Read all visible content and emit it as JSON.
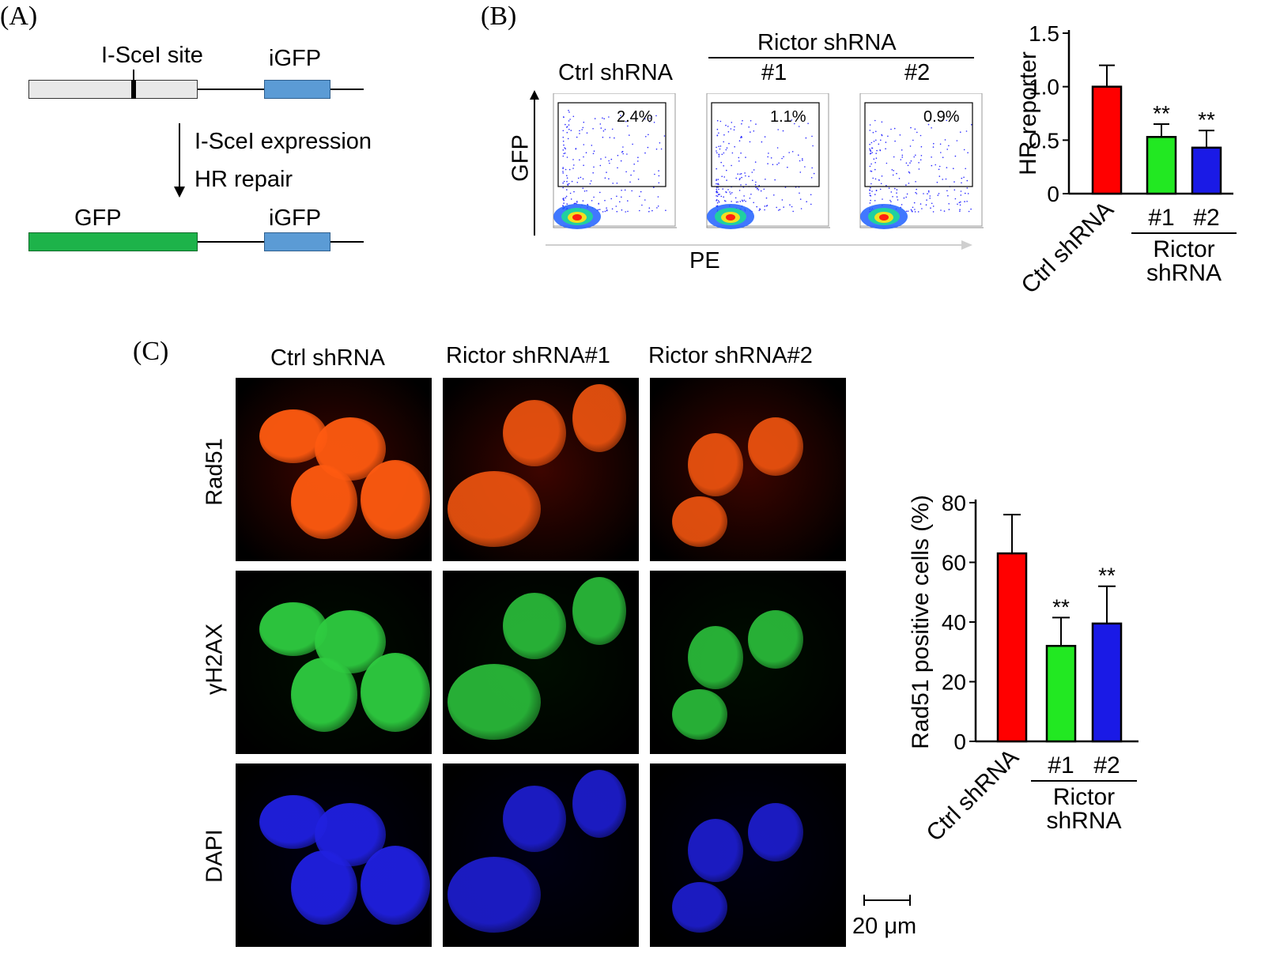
{
  "panel_a": {
    "letter": "(A)",
    "site_label": "I-SceI site",
    "igfp_label_top": "iGFP",
    "step1": "I-SceI expression",
    "step2": "HR repair",
    "gfp_label": "GFP",
    "igfp_label_bottom": "iGFP",
    "colors": {
      "grey_box": "#e8e8e8",
      "blue_box": "#5b9bd5",
      "green_box": "#1db34a"
    }
  },
  "panel_b": {
    "letter": "(B)",
    "ctrl_label": "Ctrl shRNA",
    "rictor_header": "Rictor shRNA",
    "sub1": "#1",
    "sub2": "#2",
    "y_axis": "GFP",
    "x_axis": "PE",
    "gate_values": [
      "2.4%",
      "1.1%",
      "0.9%"
    ]
  },
  "panel_c": {
    "letter": "(C)",
    "col_labels": [
      "Ctrl shRNA",
      "Rictor shRNA#1",
      "Rictor shRNA#2"
    ],
    "row_labels": [
      "Rad51",
      "γH2AX",
      "DAPI"
    ],
    "scale_bar": "20 μm",
    "stain_colors": {
      "Rad51": "#ff5a10",
      "γH2AX": "#2ecc40",
      "DAPI": "#2020e0"
    }
  },
  "chart_data": [
    {
      "type": "bar",
      "ylabel": "HR reporter",
      "ylim": [
        0,
        1.5
      ],
      "yticks": [
        "0",
        "0.5",
        "1.0",
        "1.5"
      ],
      "categories": [
        "Ctrl shRNA",
        "#1",
        "#2"
      ],
      "group_label": "Rictor shRNA",
      "values": [
        1.0,
        0.53,
        0.43
      ],
      "errors": [
        0.2,
        0.12,
        0.16
      ],
      "significance": [
        "",
        "**",
        "**"
      ],
      "colors": [
        "#ff0000",
        "#22e822",
        "#1a1ae6"
      ]
    },
    {
      "type": "bar",
      "ylabel": "Rad51 positive cells (%)",
      "ylim": [
        0,
        80
      ],
      "yticks": [
        "0",
        "20",
        "40",
        "60",
        "80"
      ],
      "categories": [
        "Ctrl shRNA",
        "#1",
        "#2"
      ],
      "group_label": "Rictor shRNA",
      "values": [
        63,
        32,
        39.5
      ],
      "errors": [
        13,
        9.5,
        12.5
      ],
      "significance": [
        "",
        "**",
        "**"
      ],
      "colors": [
        "#ff0000",
        "#22e822",
        "#1a1ae6"
      ]
    }
  ]
}
